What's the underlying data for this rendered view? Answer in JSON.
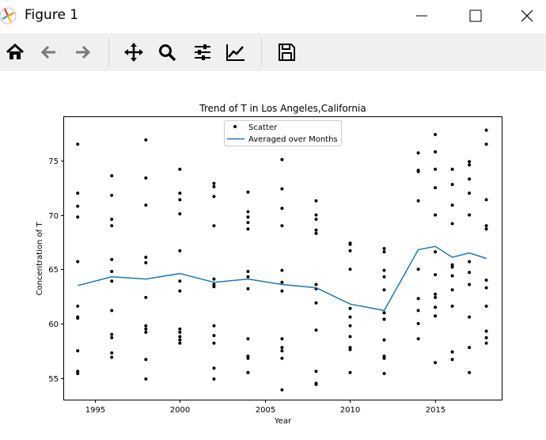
{
  "window": {
    "title": "Figure 1",
    "controls": [
      "minimize-icon",
      "maximize-icon",
      "close-icon"
    ]
  },
  "toolbar": {
    "buttons": [
      "home-icon",
      "back-arrow-icon",
      "forward-arrow-icon",
      "pan-icon",
      "zoom-icon",
      "configure-subplots-icon",
      "edit-axis-icon",
      "save-icon"
    ]
  },
  "chart_data": {
    "type": "scatter",
    "title": "Trend of T in Los Angeles,California",
    "xlabel": "Year",
    "ylabel": "Concentration of T",
    "xlim": [
      1993.2,
      2018.9
    ],
    "ylim": [
      53.0,
      79.0
    ],
    "xticks": [
      1995,
      2000,
      2005,
      2010,
      2015
    ],
    "yticks": [
      55,
      60,
      65,
      70,
      75
    ],
    "grid": false,
    "legend_position": "top-center",
    "scatter_color": "#000000",
    "line_color": "#1f77b4",
    "series": [
      {
        "name": "Scatter",
        "type": "scatter",
        "points": [
          [
            1994,
            76.5
          ],
          [
            1994,
            72.0
          ],
          [
            1994,
            70.8
          ],
          [
            1994,
            69.8
          ],
          [
            1994,
            65.7
          ],
          [
            1994,
            61.6
          ],
          [
            1994,
            60.6
          ],
          [
            1994,
            60.5
          ],
          [
            1994,
            57.5
          ],
          [
            1994,
            55.6
          ],
          [
            1994,
            55.4
          ],
          [
            1996,
            73.6
          ],
          [
            1996,
            71.8
          ],
          [
            1996,
            69.6
          ],
          [
            1996,
            69.0
          ],
          [
            1996,
            65.9
          ],
          [
            1996,
            64.8
          ],
          [
            1996,
            63.9
          ],
          [
            1996,
            61.2
          ],
          [
            1996,
            59.0
          ],
          [
            1996,
            58.7
          ],
          [
            1996,
            57.3
          ],
          [
            1996,
            56.9
          ],
          [
            1998,
            76.9
          ],
          [
            1998,
            73.4
          ],
          [
            1998,
            70.9
          ],
          [
            1998,
            66.1
          ],
          [
            1998,
            65.6
          ],
          [
            1998,
            62.4
          ],
          [
            1998,
            59.8
          ],
          [
            1998,
            59.5
          ],
          [
            1998,
            59.2
          ],
          [
            1998,
            56.7
          ],
          [
            1998,
            54.9
          ],
          [
            2000,
            74.2
          ],
          [
            2000,
            72.0
          ],
          [
            2000,
            71.4
          ],
          [
            2000,
            70.1
          ],
          [
            2000,
            66.7
          ],
          [
            2000,
            63.9
          ],
          [
            2000,
            63.0
          ],
          [
            2000,
            59.5
          ],
          [
            2000,
            59.2
          ],
          [
            2000,
            58.8
          ],
          [
            2000,
            58.5
          ],
          [
            2000,
            58.2
          ],
          [
            2002,
            72.9
          ],
          [
            2002,
            72.6
          ],
          [
            2002,
            71.7
          ],
          [
            2002,
            69.0
          ],
          [
            2002,
            64.1
          ],
          [
            2002,
            63.6
          ],
          [
            2002,
            63.4
          ],
          [
            2002,
            59.8
          ],
          [
            2002,
            58.9
          ],
          [
            2002,
            58.2
          ],
          [
            2002,
            55.9
          ],
          [
            2002,
            54.9
          ],
          [
            2004,
            72.1
          ],
          [
            2004,
            70.3
          ],
          [
            2004,
            69.8
          ],
          [
            2004,
            69.3
          ],
          [
            2004,
            68.7
          ],
          [
            2004,
            64.8
          ],
          [
            2004,
            64.3
          ],
          [
            2004,
            63.2
          ],
          [
            2004,
            58.6
          ],
          [
            2004,
            57.0
          ],
          [
            2004,
            56.8
          ],
          [
            2004,
            55.5
          ],
          [
            2006,
            75.1
          ],
          [
            2006,
            72.4
          ],
          [
            2006,
            70.6
          ],
          [
            2006,
            69.0
          ],
          [
            2006,
            64.9
          ],
          [
            2006,
            63.8
          ],
          [
            2006,
            63.0
          ],
          [
            2006,
            58.6
          ],
          [
            2006,
            57.8
          ],
          [
            2006,
            57.5
          ],
          [
            2006,
            56.8
          ],
          [
            2006,
            53.9
          ],
          [
            2008,
            71.3
          ],
          [
            2008,
            70.0
          ],
          [
            2008,
            69.6
          ],
          [
            2008,
            68.6
          ],
          [
            2008,
            68.3
          ],
          [
            2008,
            63.6
          ],
          [
            2008,
            63.2
          ],
          [
            2008,
            61.9
          ],
          [
            2008,
            59.4
          ],
          [
            2008,
            55.6
          ],
          [
            2008,
            54.5
          ],
          [
            2008,
            54.4
          ],
          [
            2010,
            67.4
          ],
          [
            2010,
            67.3
          ],
          [
            2010,
            66.7
          ],
          [
            2010,
            65.0
          ],
          [
            2010,
            61.4
          ],
          [
            2010,
            60.6
          ],
          [
            2010,
            59.8
          ],
          [
            2010,
            58.8
          ],
          [
            2010,
            57.8
          ],
          [
            2010,
            57.6
          ],
          [
            2010,
            55.5
          ],
          [
            2012,
            66.9
          ],
          [
            2012,
            66.6
          ],
          [
            2012,
            64.9
          ],
          [
            2012,
            64.3
          ],
          [
            2012,
            63.1
          ],
          [
            2012,
            61.0
          ],
          [
            2012,
            60.4
          ],
          [
            2012,
            60.4
          ],
          [
            2012,
            58.5
          ],
          [
            2012,
            57.0
          ],
          [
            2012,
            56.8
          ],
          [
            2012,
            55.4
          ],
          [
            2014,
            75.7
          ],
          [
            2014,
            74.1
          ],
          [
            2014,
            74.0
          ],
          [
            2014,
            71.3
          ],
          [
            2014,
            65.0
          ],
          [
            2014,
            62.3
          ],
          [
            2014,
            61.2
          ],
          [
            2014,
            60.0
          ],
          [
            2014,
            58.6
          ],
          [
            2015,
            77.4
          ],
          [
            2015,
            75.8
          ],
          [
            2015,
            74.2
          ],
          [
            2015,
            72.5
          ],
          [
            2015,
            70.0
          ],
          [
            2015,
            66.6
          ],
          [
            2015,
            64.5
          ],
          [
            2015,
            62.7
          ],
          [
            2015,
            62.4
          ],
          [
            2015,
            61.5
          ],
          [
            2015,
            60.7
          ],
          [
            2015,
            56.4
          ],
          [
            2016,
            74.2
          ],
          [
            2016,
            72.8
          ],
          [
            2016,
            70.9
          ],
          [
            2016,
            69.2
          ],
          [
            2016,
            65.4
          ],
          [
            2016,
            65.2
          ],
          [
            2016,
            64.4
          ],
          [
            2016,
            63.1
          ],
          [
            2016,
            61.6
          ],
          [
            2016,
            57.4
          ],
          [
            2016,
            56.7
          ],
          [
            2017,
            74.9
          ],
          [
            2017,
            74.6
          ],
          [
            2017,
            73.3
          ],
          [
            2017,
            72.0
          ],
          [
            2017,
            70.0
          ],
          [
            2017,
            65.7
          ],
          [
            2017,
            64.7
          ],
          [
            2017,
            63.6
          ],
          [
            2017,
            60.6
          ],
          [
            2017,
            57.8
          ],
          [
            2017,
            55.5
          ],
          [
            2018,
            77.8
          ],
          [
            2018,
            76.5
          ],
          [
            2018,
            71.4
          ],
          [
            2018,
            69.0
          ],
          [
            2018,
            68.7
          ],
          [
            2018,
            64.0
          ],
          [
            2018,
            63.3
          ],
          [
            2018,
            61.6
          ],
          [
            2018,
            59.3
          ],
          [
            2018,
            58.7
          ],
          [
            2018,
            58.2
          ]
        ]
      },
      {
        "name": "Averaged over Months",
        "type": "line",
        "points": [
          [
            1994,
            63.5
          ],
          [
            1996,
            64.3
          ],
          [
            1998,
            64.1
          ],
          [
            2000,
            64.6
          ],
          [
            2002,
            63.8
          ],
          [
            2004,
            64.1
          ],
          [
            2006,
            63.6
          ],
          [
            2008,
            63.3
          ],
          [
            2010,
            61.8
          ],
          [
            2012,
            61.2
          ],
          [
            2014,
            66.8
          ],
          [
            2015,
            67.1
          ],
          [
            2016,
            66.1
          ],
          [
            2017,
            66.5
          ],
          [
            2018,
            66.0
          ]
        ]
      }
    ]
  }
}
